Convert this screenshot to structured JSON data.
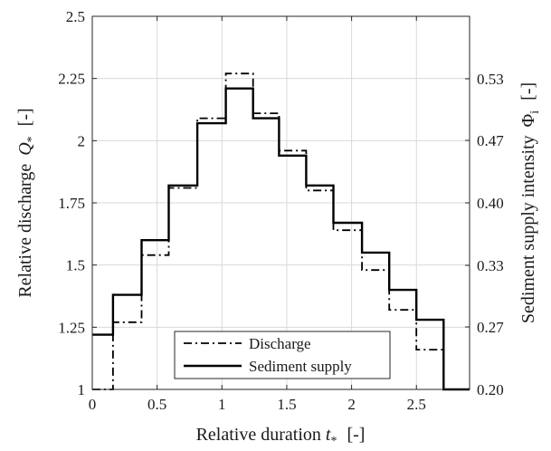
{
  "chart_data": {
    "type": "line",
    "step": "post",
    "xlabel": "Relative duration",
    "xlabel_symbol": "t",
    "xlabel_sub": "*",
    "xlabel_unit": "[-]",
    "ylabel": "Relative discharge",
    "ylabel_symbol": "Q",
    "ylabel_sub": "*",
    "ylabel_unit": "[-]",
    "y2label": "Sediment supply intensity",
    "y2label_symbol": "Φ",
    "y2label_sub": "i",
    "y2label_unit": "[-]",
    "xlim": [
      0,
      2.91
    ],
    "ylim": [
      1,
      2.5
    ],
    "y2lim": [
      0.2,
      0.6
    ],
    "grid": true,
    "legend_position": "bottom-center",
    "x_ticks": [
      0,
      0.5,
      1,
      1.5,
      2,
      2.5
    ],
    "x_tick_labels": [
      "0",
      "0.5",
      "1",
      "1.5",
      "2",
      "2.5"
    ],
    "y_ticks": [
      1,
      1.25,
      1.5,
      1.75,
      2,
      2.25,
      2.5
    ],
    "y_tick_labels": [
      "1",
      "1.25",
      "1.5",
      "1.75",
      "2",
      "2.25",
      "2.5"
    ],
    "y2_ticks": [
      0.2,
      0.267,
      0.333,
      0.4,
      0.467,
      0.533
    ],
    "y2_tick_labels": [
      "0.20",
      "0.27",
      "0.33",
      "0.40",
      "0.47",
      "0.53"
    ],
    "series": [
      {
        "name": "Discharge",
        "style": "dash-dot",
        "axis": "left",
        "x": [
          0,
          0.16,
          0.38,
          0.59,
          0.81,
          1.03,
          1.24,
          1.44,
          1.65,
          1.86,
          2.08,
          2.29,
          2.5,
          2.71
        ],
        "values": [
          1,
          1.27,
          1.54,
          1.81,
          2.09,
          2.27,
          2.11,
          1.96,
          1.8,
          1.64,
          1.48,
          1.32,
          1.16,
          1
        ]
      },
      {
        "name": "Sediment supply",
        "style": "solid",
        "axis": "left",
        "x": [
          0,
          0.16,
          0.38,
          0.59,
          0.81,
          1.03,
          1.24,
          1.44,
          1.65,
          1.86,
          2.08,
          2.29,
          2.5,
          2.71
        ],
        "values": [
          1.22,
          1.38,
          1.6,
          1.82,
          2.07,
          2.21,
          2.09,
          1.94,
          1.82,
          1.67,
          1.55,
          1.4,
          1.28,
          1
        ]
      }
    ],
    "colors": {
      "lines": "#000000",
      "grid": "#d9d9d9",
      "background": "#ffffff"
    }
  }
}
